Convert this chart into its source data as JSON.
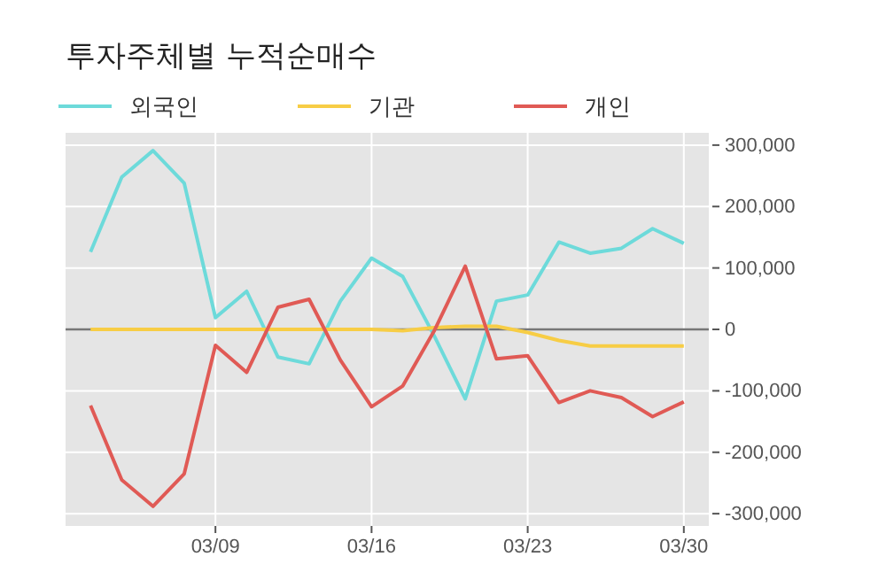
{
  "chart_data": {
    "type": "line",
    "title": "투자주체별 누적순매수",
    "categories": [
      null,
      null,
      null,
      null,
      "03/09",
      null,
      null,
      null,
      null,
      "03/16",
      null,
      null,
      null,
      null,
      "03/23",
      null,
      null,
      null,
      null,
      "03/30"
    ],
    "series": [
      {
        "name": "외국인",
        "color": "#6ddada",
        "values": [
          126000,
          248000,
          291000,
          238000,
          19000,
          62000,
          -45000,
          -56000,
          46000,
          116000,
          86000,
          -10000,
          -113000,
          46000,
          56000,
          142000,
          124000,
          132000,
          164000,
          140000
        ]
      },
      {
        "name": "기관",
        "color": "#f7cd45",
        "values": [
          0,
          0,
          0,
          0,
          0,
          0,
          0,
          0,
          0,
          0,
          -2000,
          3000,
          5000,
          5000,
          -5000,
          -18000,
          -27000,
          -27000,
          -27000,
          -27000
        ]
      },
      {
        "name": "개인",
        "color": "#e05a55",
        "values": [
          -124000,
          -245000,
          -288000,
          -235000,
          -26000,
          -70000,
          36000,
          49000,
          -50000,
          -126000,
          -92000,
          -3000,
          103000,
          -48000,
          -43000,
          -119000,
          -100000,
          -111000,
          -142000,
          -118000
        ]
      }
    ],
    "ylim": [
      -320000,
      320000
    ],
    "yticks": [
      {
        "value": -300000,
        "label": "-300,000"
      },
      {
        "value": -200000,
        "label": "-200,000"
      },
      {
        "value": -100000,
        "label": "-100,000"
      },
      {
        "value": 0,
        "label": "0"
      },
      {
        "value": 100000,
        "label": "100,000"
      },
      {
        "value": 200000,
        "label": "200,000"
      },
      {
        "value": 300000,
        "label": "300,000"
      }
    ],
    "ref_lines": [
      {
        "axis": "y",
        "value": 0,
        "color": "#777777"
      }
    ],
    "grid": true,
    "legend": "top left",
    "line_style": "solid",
    "marker": "none"
  }
}
